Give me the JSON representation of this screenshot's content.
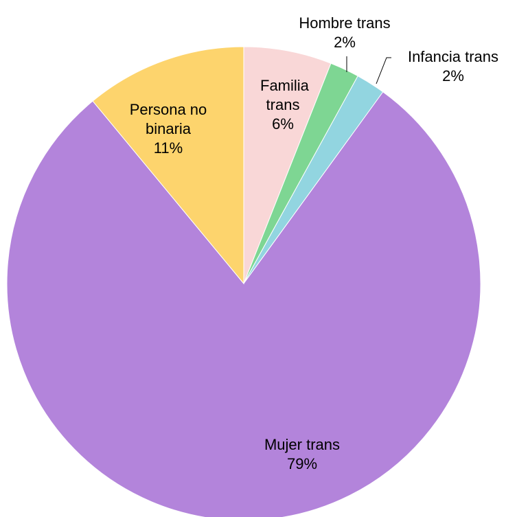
{
  "chart_data": {
    "type": "pie",
    "categories": [
      "Familia trans",
      "Hombre trans",
      "Infancia trans",
      "Mujer trans",
      "Persona no binaria"
    ],
    "values": [
      6,
      2,
      2,
      79,
      11
    ],
    "value_labels": [
      "6%",
      "2%",
      "2%",
      "79%",
      "11%"
    ],
    "colors": [
      "#f9d7d7",
      "#7ed693",
      "#92d5e0",
      "#b384db",
      "#fdd46d"
    ]
  }
}
